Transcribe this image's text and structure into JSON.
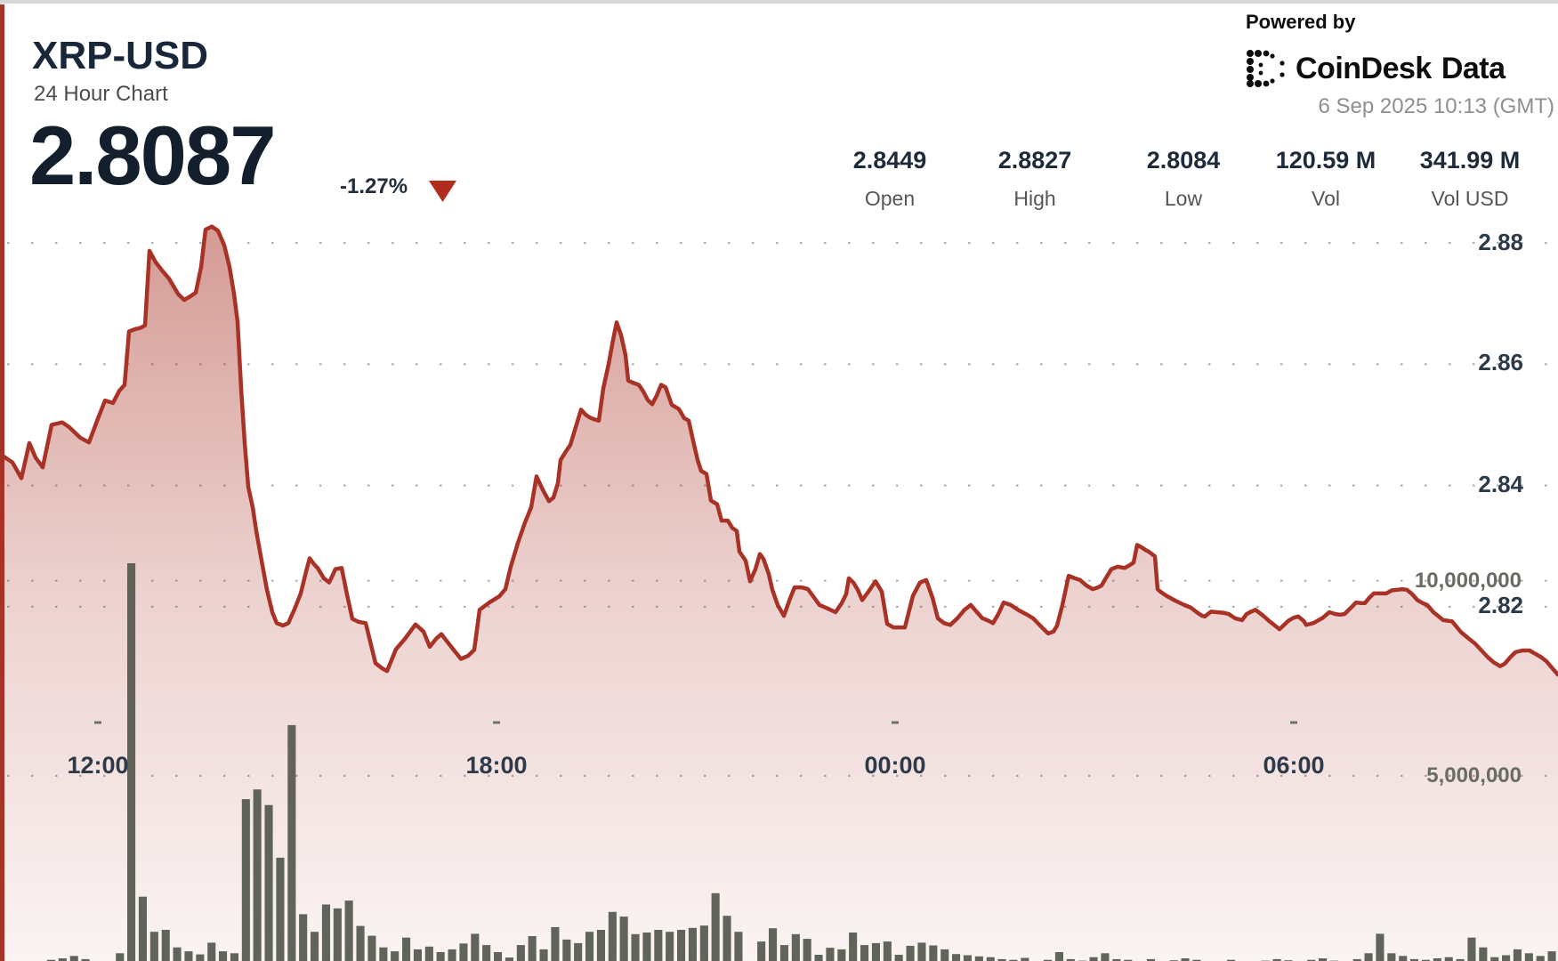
{
  "header": {
    "symbol": "XRP-USD",
    "subtitle": "24 Hour Chart",
    "price": "2.8087",
    "change": "-1.27%",
    "change_direction": "down",
    "powered_by": "Powered by",
    "brand": "CoinDesk",
    "brand_suffix": "Data",
    "timestamp": "6 Sep 2025 10:13 (GMT)"
  },
  "stats": {
    "items": [
      {
        "value": "2.8449",
        "label": "Open"
      },
      {
        "value": "2.8827",
        "label": "High"
      },
      {
        "value": "2.8084",
        "label": "Low"
      },
      {
        "value": "120.59 M",
        "label": "Vol"
      },
      {
        "value": "341.99 M",
        "label": "Vol USD"
      }
    ]
  },
  "colors": {
    "line_red": "#a93226",
    "triangle_red": "#b02c1e",
    "navy_text": "#1e2b3a",
    "volume_bar": "#575c52",
    "grid_dot": "#8f949a"
  },
  "chart_data": {
    "type": "area",
    "title": "XRP-USD 24 Hour Chart",
    "open": 2.8449,
    "high": 2.8827,
    "low": 2.8084,
    "last": 2.8087,
    "change_pct": -1.27,
    "volume": "120.59 M",
    "volume_usd": "341.99 M",
    "price_axis": {
      "side": "right",
      "ticks": [
        {
          "label": "2.88",
          "value": 2.88
        },
        {
          "label": "2.86",
          "value": 2.86
        },
        {
          "label": "2.84",
          "value": 2.84
        },
        {
          "label": "2.82",
          "value": 2.82
        }
      ]
    },
    "volume_axis": {
      "unit": "millions",
      "ticks": [
        {
          "label": "10,000,000",
          "value": 10
        },
        {
          "label": "5,000,000",
          "value": 5
        }
      ]
    },
    "time_axis": {
      "ticks": [
        {
          "label": "12:00",
          "x01": 0.0628
        },
        {
          "label": "18:00",
          "x01": 0.3187
        },
        {
          "label": "00:00",
          "x01": 0.5745
        },
        {
          "label": "06:00",
          "x01": 0.8304
        }
      ]
    },
    "price_points": [
      [
        0,
        2.8452
      ],
      [
        14,
        2.8438
      ],
      [
        24,
        2.8412
      ],
      [
        33,
        2.847
      ],
      [
        40,
        2.8446
      ],
      [
        48,
        2.843
      ],
      [
        58,
        2.85
      ],
      [
        70,
        2.8504
      ],
      [
        78,
        2.8496
      ],
      [
        90,
        2.8479
      ],
      [
        100,
        2.8471
      ],
      [
        110,
        2.851
      ],
      [
        118,
        2.854
      ],
      [
        127,
        2.8536
      ],
      [
        134,
        2.8556
      ],
      [
        140,
        2.8566
      ],
      [
        145,
        2.8654
      ],
      [
        152,
        2.8658
      ],
      [
        158,
        2.866
      ],
      [
        163,
        2.8664
      ],
      [
        168,
        2.8787
      ],
      [
        175,
        2.8768
      ],
      [
        183,
        2.8753
      ],
      [
        190,
        2.8741
      ],
      [
        200,
        2.8716
      ],
      [
        207,
        2.8706
      ],
      [
        214,
        2.8712
      ],
      [
        220,
        2.8718
      ],
      [
        226,
        2.876
      ],
      [
        231,
        2.8822
      ],
      [
        238,
        2.8827
      ],
      [
        245,
        2.882
      ],
      [
        252,
        2.8796
      ],
      [
        258,
        2.876
      ],
      [
        263,
        2.8716
      ],
      [
        267,
        2.867
      ],
      [
        271,
        2.856
      ],
      [
        275,
        2.847
      ],
      [
        279,
        2.8398
      ],
      [
        284,
        2.8364
      ],
      [
        288,
        2.8325
      ],
      [
        294,
        2.8276
      ],
      [
        300,
        2.8228
      ],
      [
        306,
        2.8191
      ],
      [
        311,
        2.8173
      ],
      [
        318,
        2.8169
      ],
      [
        324,
        2.8173
      ],
      [
        331,
        2.8196
      ],
      [
        338,
        2.8222
      ],
      [
        344,
        2.8258
      ],
      [
        348,
        2.828
      ],
      [
        353,
        2.827
      ],
      [
        357,
        2.8264
      ],
      [
        364,
        2.8247
      ],
      [
        370,
        2.824
      ],
      [
        377,
        2.8262
      ],
      [
        384,
        2.8264
      ],
      [
        390,
        2.822
      ],
      [
        396,
        2.818
      ],
      [
        403,
        2.8175
      ],
      [
        411,
        2.8173
      ],
      [
        422,
        2.8107
      ],
      [
        430,
        2.8098
      ],
      [
        435,
        2.8094
      ],
      [
        445,
        2.813
      ],
      [
        455,
        2.8147
      ],
      [
        467,
        2.8171
      ],
      [
        476,
        2.8159
      ],
      [
        483,
        2.8134
      ],
      [
        490,
        2.8147
      ],
      [
        496,
        2.8155
      ],
      [
        506,
        2.8136
      ],
      [
        518,
        2.8114
      ],
      [
        526,
        2.8119
      ],
      [
        533,
        2.8129
      ],
      [
        539,
        2.8195
      ],
      [
        550,
        2.8207
      ],
      [
        561,
        2.8217
      ],
      [
        568,
        2.8229
      ],
      [
        574,
        2.8266
      ],
      [
        582,
        2.8305
      ],
      [
        590,
        2.8339
      ],
      [
        597,
        2.8364
      ],
      [
        603,
        2.8415
      ],
      [
        610,
        2.8393
      ],
      [
        617,
        2.8374
      ],
      [
        622,
        2.838
      ],
      [
        627,
        2.8404
      ],
      [
        630,
        2.8442
      ],
      [
        636,
        2.8456
      ],
      [
        641,
        2.8467
      ],
      [
        647,
        2.8496
      ],
      [
        653,
        2.8525
      ],
      [
        658,
        2.8517
      ],
      [
        663,
        2.8512
      ],
      [
        668,
        2.8509
      ],
      [
        673,
        2.8507
      ],
      [
        678,
        2.856
      ],
      [
        684,
        2.86
      ],
      [
        689,
        2.864
      ],
      [
        693,
        2.8669
      ],
      [
        698,
        2.8648
      ],
      [
        703,
        2.8615
      ],
      [
        706,
        2.8573
      ],
      [
        712,
        2.8569
      ],
      [
        718,
        2.8566
      ],
      [
        723,
        2.8555
      ],
      [
        728,
        2.8541
      ],
      [
        733,
        2.8534
      ],
      [
        738,
        2.8548
      ],
      [
        743,
        2.8566
      ],
      [
        748,
        2.8562
      ],
      [
        755,
        2.8533
      ],
      [
        763,
        2.8526
      ],
      [
        769,
        2.8511
      ],
      [
        774,
        2.8507
      ],
      [
        779,
        2.8474
      ],
      [
        784,
        2.8442
      ],
      [
        788,
        2.8424
      ],
      [
        794,
        2.8419
      ],
      [
        799,
        2.8375
      ],
      [
        806,
        2.8369
      ],
      [
        811,
        2.8342
      ],
      [
        818,
        2.8342
      ],
      [
        823,
        2.833
      ],
      [
        828,
        2.8325
      ],
      [
        831,
        2.8291
      ],
      [
        838,
        2.8276
      ],
      [
        843,
        2.8242
      ],
      [
        849,
        2.8262
      ],
      [
        854,
        2.8287
      ],
      [
        858,
        2.8279
      ],
      [
        864,
        2.8254
      ],
      [
        868,
        2.8228
      ],
      [
        874,
        2.8203
      ],
      [
        881,
        2.8185
      ],
      [
        887,
        2.821
      ],
      [
        893,
        2.8232
      ],
      [
        901,
        2.8232
      ],
      [
        908,
        2.8229
      ],
      [
        915,
        2.8215
      ],
      [
        921,
        2.8203
      ],
      [
        929,
        2.8198
      ],
      [
        939,
        2.8191
      ],
      [
        946,
        2.8206
      ],
      [
        951,
        2.8221
      ],
      [
        954,
        2.8247
      ],
      [
        959,
        2.824
      ],
      [
        964,
        2.8228
      ],
      [
        969,
        2.8211
      ],
      [
        976,
        2.8225
      ],
      [
        984,
        2.8242
      ],
      [
        991,
        2.8225
      ],
      [
        997,
        2.8172
      ],
      [
        1004,
        2.8166
      ],
      [
        1017,
        2.8166
      ],
      [
        1026,
        2.8218
      ],
      [
        1034,
        2.824
      ],
      [
        1041,
        2.8244
      ],
      [
        1048,
        2.8215
      ],
      [
        1054,
        2.8181
      ],
      [
        1061,
        2.8173
      ],
      [
        1068,
        2.817
      ],
      [
        1076,
        2.8181
      ],
      [
        1084,
        2.8195
      ],
      [
        1091,
        2.8203
      ],
      [
        1098,
        2.8191
      ],
      [
        1104,
        2.8181
      ],
      [
        1111,
        2.8177
      ],
      [
        1116,
        2.8173
      ],
      [
        1122,
        2.8188
      ],
      [
        1128,
        2.8207
      ],
      [
        1136,
        2.8203
      ],
      [
        1144,
        2.8195
      ],
      [
        1153,
        2.8188
      ],
      [
        1161,
        2.8181
      ],
      [
        1171,
        2.8166
      ],
      [
        1178,
        2.8156
      ],
      [
        1184,
        2.8159
      ],
      [
        1188,
        2.8169
      ],
      [
        1194,
        2.8203
      ],
      [
        1201,
        2.8251
      ],
      [
        1208,
        2.8247
      ],
      [
        1214,
        2.8244
      ],
      [
        1221,
        2.8235
      ],
      [
        1228,
        2.8229
      ],
      [
        1234,
        2.8232
      ],
      [
        1238,
        2.8235
      ],
      [
        1244,
        2.825
      ],
      [
        1249,
        2.8262
      ],
      [
        1256,
        2.8266
      ],
      [
        1264,
        2.8264
      ],
      [
        1270,
        2.8269
      ],
      [
        1274,
        2.8273
      ],
      [
        1278,
        2.8302
      ],
      [
        1283,
        2.8298
      ],
      [
        1288,
        2.8293
      ],
      [
        1291,
        2.8291
      ],
      [
        1298,
        2.8283
      ],
      [
        1301,
        2.8229
      ],
      [
        1304,
        2.8225
      ],
      [
        1311,
        2.8218
      ],
      [
        1321,
        2.821
      ],
      [
        1331,
        2.8203
      ],
      [
        1338,
        2.8199
      ],
      [
        1345,
        2.8191
      ],
      [
        1351,
        2.8185
      ],
      [
        1354,
        2.8184
      ],
      [
        1361,
        2.8192
      ],
      [
        1368,
        2.8191
      ],
      [
        1375,
        2.819
      ],
      [
        1381,
        2.8188
      ],
      [
        1388,
        2.8181
      ],
      [
        1396,
        2.8178
      ],
      [
        1401,
        2.8188
      ],
      [
        1406,
        2.8192
      ],
      [
        1411,
        2.8195
      ],
      [
        1419,
        2.8186
      ],
      [
        1426,
        2.8177
      ],
      [
        1438,
        2.8163
      ],
      [
        1448,
        2.8177
      ],
      [
        1454,
        2.8182
      ],
      [
        1459,
        2.8184
      ],
      [
        1465,
        2.8177
      ],
      [
        1468,
        2.817
      ],
      [
        1473,
        2.8172
      ],
      [
        1476,
        2.8173
      ],
      [
        1482,
        2.8178
      ],
      [
        1486,
        2.8181
      ],
      [
        1494,
        2.8191
      ],
      [
        1501,
        2.8188
      ],
      [
        1506,
        2.8187
      ],
      [
        1511,
        2.8188
      ],
      [
        1518,
        2.8198
      ],
      [
        1524,
        2.8207
      ],
      [
        1530,
        2.8206
      ],
      [
        1534,
        2.8206
      ],
      [
        1539,
        2.8215
      ],
      [
        1544,
        2.8222
      ],
      [
        1551,
        2.8222
      ],
      [
        1558,
        2.8222
      ],
      [
        1564,
        2.8227
      ],
      [
        1571,
        2.8228
      ],
      [
        1576,
        2.8229
      ],
      [
        1581,
        2.8228
      ],
      [
        1587,
        2.8221
      ],
      [
        1593,
        2.8211
      ],
      [
        1599,
        2.8206
      ],
      [
        1604,
        2.8203
      ],
      [
        1611,
        2.8191
      ],
      [
        1622,
        2.8178
      ],
      [
        1632,
        2.8176
      ],
      [
        1642,
        2.8158
      ],
      [
        1652,
        2.8146
      ],
      [
        1658,
        2.8139
      ],
      [
        1665,
        2.8128
      ],
      [
        1672,
        2.8117
      ],
      [
        1679,
        2.8108
      ],
      [
        1686,
        2.8102
      ],
      [
        1691,
        2.8106
      ],
      [
        1697,
        2.8116
      ],
      [
        1703,
        2.8125
      ],
      [
        1711,
        2.8128
      ],
      [
        1719,
        2.8128
      ],
      [
        1726,
        2.8122
      ],
      [
        1732,
        2.8117
      ],
      [
        1738,
        2.811
      ],
      [
        1745,
        2.8098
      ],
      [
        1751,
        2.8088
      ]
    ],
    "volume_bars_m": [
      0.15,
      0.22,
      0.12,
      0.18,
      0.28,
      0.32,
      0.38,
      0.3,
      0.22,
      0.16,
      0.45,
      10.45,
      1.9,
      1.0,
      1.05,
      0.6,
      0.5,
      0.42,
      0.72,
      0.5,
      0.45,
      4.4,
      4.65,
      4.25,
      2.9,
      6.3,
      1.45,
      1.0,
      1.7,
      1.6,
      1.8,
      1.15,
      0.9,
      0.6,
      0.5,
      0.85,
      0.55,
      0.62,
      0.48,
      0.55,
      0.7,
      0.95,
      0.66,
      0.48,
      0.34,
      0.66,
      0.89,
      0.55,
      1.12,
      0.8,
      0.71,
      1.0,
      1.05,
      1.51,
      1.39,
      0.94,
      0.98,
      1.05,
      1.0,
      1.05,
      1.1,
      1.16,
      1.99,
      1.41,
      1.0,
      0.21,
      0.75,
      1.09,
      0.66,
      0.94,
      0.82,
      0.41,
      0.59,
      0.55,
      0.98,
      0.66,
      0.71,
      0.75,
      0.41,
      0.64,
      0.72,
      0.65,
      0.55,
      0.43,
      0.4,
      0.37,
      0.35,
      0.3,
      0.28,
      0.33,
      0.25,
      0.28,
      0.48,
      0.3,
      0.26,
      0.35,
      0.45,
      0.3,
      0.28,
      0.25,
      0.3,
      0.24,
      0.27,
      0.32,
      0.28,
      0.25,
      0.22,
      0.28,
      0.25,
      0.23,
      0.26,
      0.3,
      0.27,
      0.24,
      0.28,
      0.32,
      0.26,
      0.24,
      0.3,
      0.45,
      0.95,
      0.45,
      0.38,
      0.3,
      0.28,
      0.32,
      0.35,
      0.3,
      0.85,
      0.6,
      0.35,
      0.4,
      0.55,
      0.45,
      0.38,
      0.5
    ]
  }
}
